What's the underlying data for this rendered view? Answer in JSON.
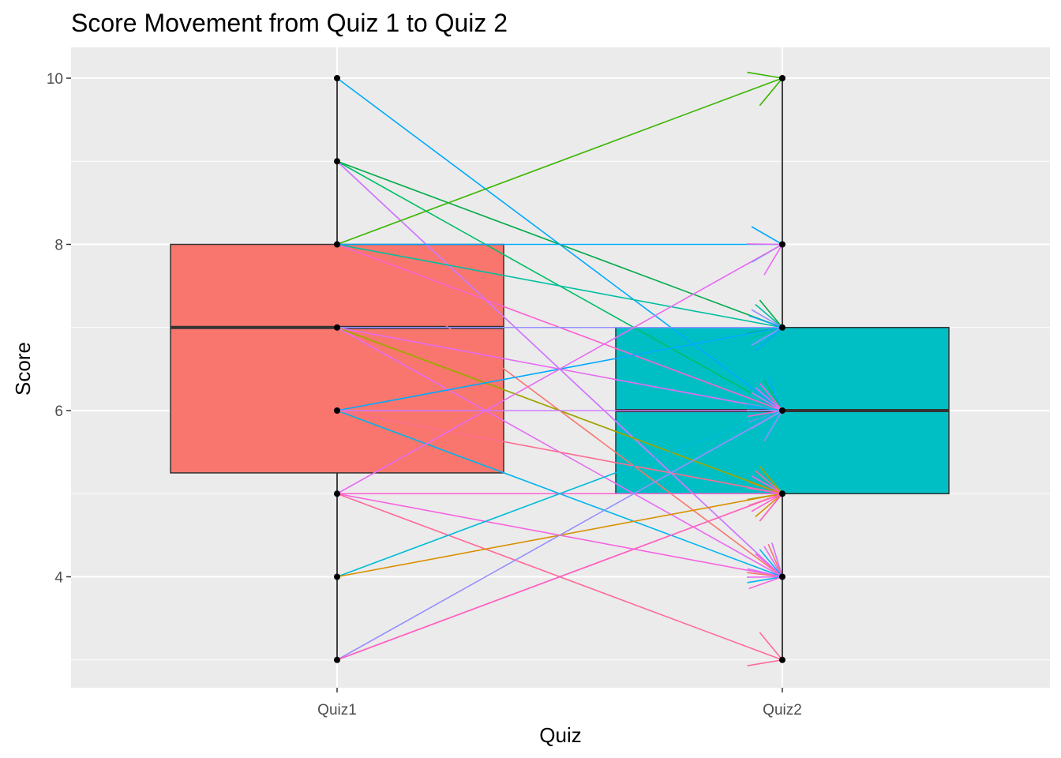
{
  "chart_data": {
    "type": "box",
    "title": "Score Movement from Quiz 1 to Quiz 2",
    "xlabel": "Quiz",
    "ylabel": "Score",
    "categories": [
      "Quiz1",
      "Quiz2"
    ],
    "ylim": [
      2.7,
      10.5
    ],
    "y_ticks": [
      4,
      6,
      8,
      10
    ],
    "grid": true,
    "legend": "none",
    "colors": {
      "panel_bg": "#ebebeb",
      "grid": "#ffffff",
      "quiz1_box": "#f8766d",
      "quiz2_box": "#00bfc4",
      "whisker": "#000000",
      "median": "#333333"
    },
    "boxes": [
      {
        "category": "Quiz1",
        "min": 3,
        "q1": 5.25,
        "median": 7,
        "q3": 8,
        "max": 10
      },
      {
        "category": "Quiz2",
        "min": 3,
        "q1": 5,
        "median": 6,
        "q3": 7,
        "max": 10
      }
    ],
    "points": [
      {
        "category": "Quiz1",
        "values": [
          10,
          9,
          8,
          7,
          6,
          5,
          4,
          3
        ]
      },
      {
        "category": "Quiz2",
        "values": [
          10,
          8,
          7,
          6,
          5,
          4,
          3
        ]
      }
    ],
    "movements": [
      {
        "from": 10,
        "to": 6,
        "color": "#00a9ff"
      },
      {
        "from": 9,
        "to": 7,
        "color": "#00ab48"
      },
      {
        "from": 9,
        "to": 6,
        "color": "#00be67"
      },
      {
        "from": 9,
        "to": 4,
        "color": "#e76bf3"
      },
      {
        "from": 9,
        "to": 4,
        "color": "#cc79ff"
      },
      {
        "from": 8,
        "to": 10,
        "color": "#39b600"
      },
      {
        "from": 8,
        "to": 8,
        "color": "#00a9ff"
      },
      {
        "from": 8,
        "to": 7,
        "color": "#00bfa0"
      },
      {
        "from": 8,
        "to": 6,
        "color": "#fd61d1"
      },
      {
        "from": 8,
        "to": 4,
        "color": "#f8766d"
      },
      {
        "from": 7,
        "to": 7,
        "color": "#9590ff"
      },
      {
        "from": 7,
        "to": 6,
        "color": "#e76bf3"
      },
      {
        "from": 7,
        "to": 5,
        "color": "#7cae00"
      },
      {
        "from": 7,
        "to": 5,
        "color": "#a3a500"
      },
      {
        "from": 7,
        "to": 4,
        "color": "#e76bf3"
      },
      {
        "from": 6,
        "to": 7,
        "color": "#00a9ff"
      },
      {
        "from": 6,
        "to": 6,
        "color": "#cc79ff"
      },
      {
        "from": 6,
        "to": 4,
        "color": "#00b4f0"
      },
      {
        "from": 6,
        "to": 5,
        "color": "#ff6c91"
      },
      {
        "from": 5,
        "to": 8,
        "color": "#e76bf3"
      },
      {
        "from": 5,
        "to": 5,
        "color": "#fd61d1"
      },
      {
        "from": 5,
        "to": 4,
        "color": "#f763e0"
      },
      {
        "from": 5,
        "to": 3,
        "color": "#ff6a98"
      },
      {
        "from": 4,
        "to": 6,
        "color": "#00bcd8"
      },
      {
        "from": 4,
        "to": 5,
        "color": "#d89000"
      },
      {
        "from": 3,
        "to": 6,
        "color": "#9590ff"
      },
      {
        "from": 3,
        "to": 5,
        "color": "#f564e3"
      },
      {
        "from": 3,
        "to": 5,
        "color": "#ff62bc"
      }
    ]
  }
}
